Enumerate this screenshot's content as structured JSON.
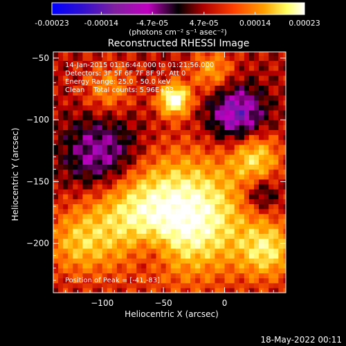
{
  "colorbar": {
    "tick_labels": [
      "-0.00023",
      "-0.00014",
      "-4.7e-05",
      "4.7e-05",
      "0.00014",
      "0.00023"
    ],
    "tick_values": [
      -0.00023,
      -0.00014,
      -4.7e-05,
      4.7e-05,
      0.00014,
      0.00023
    ],
    "range": [
      -0.00023,
      0.00023
    ],
    "unit_label": "(photons cm⁻² s⁻¹ asec⁻²)"
  },
  "chart_data": {
    "type": "heatmap",
    "title": "Reconstructed RHESSI Image",
    "xlabel": "Heliocentric X (arcsec)",
    "ylabel": "Heliocentric Y (arcsec)",
    "xlim": [
      -140,
      50
    ],
    "ylim": [
      -240,
      -45
    ],
    "x_ticks": [
      -100,
      -50,
      0
    ],
    "x_tick_labels": [
      "−100",
      "−50",
      "0"
    ],
    "y_ticks": [
      -50,
      -100,
      -150,
      -200
    ],
    "y_tick_labels": [
      "−50",
      "−100",
      "−150",
      "−200"
    ],
    "colormap": [
      "#0000ff",
      "#6020a0",
      "#c000c0",
      "#000000",
      "#c00000",
      "#ff6000",
      "#ffb000",
      "#ffff80",
      "#ffffff"
    ],
    "sources": [
      {
        "x": -41,
        "y": -83,
        "amp": 1.0,
        "sigma": 9
      },
      {
        "x": -28,
        "y": -178,
        "amp": 0.95,
        "sigma": 32
      },
      {
        "x": -80,
        "y": -175,
        "amp": 0.55,
        "sigma": 28
      },
      {
        "x": 25,
        "y": -130,
        "amp": 0.6,
        "sigma": 14
      },
      {
        "x": 35,
        "y": -205,
        "amp": 0.65,
        "sigma": 16
      },
      {
        "x": -120,
        "y": -200,
        "amp": 0.45,
        "sigma": 18
      },
      {
        "x": -95,
        "y": -75,
        "amp": 0.4,
        "sigma": 14
      },
      {
        "x": -10,
        "y": -60,
        "amp": 0.45,
        "sigma": 12
      }
    ],
    "negatives": [
      {
        "x": -100,
        "y": -130,
        "amp": 0.6,
        "sigma": 22
      },
      {
        "x": 10,
        "y": -95,
        "amp": 0.7,
        "sigma": 16
      },
      {
        "x": -60,
        "y": -205,
        "amp": 0.35,
        "sigma": 14
      },
      {
        "x": 30,
        "y": -160,
        "amp": 0.4,
        "sigma": 10
      }
    ]
  },
  "info": {
    "time_range": "14-Jan-2015 01:16:44.000 to 01:21:56.000",
    "detectors": "Detectors: 3F 5F 6F 7F 8F 9F, Att 0",
    "energy": "Energy Range: 25.0 - 50.0 keV",
    "clean": "Clean    Total counts: 5.96E+03",
    "peak": "Position of Peak = [-41,-83]"
  },
  "footer": {
    "timestamp": "18-May-2022 00:11"
  }
}
